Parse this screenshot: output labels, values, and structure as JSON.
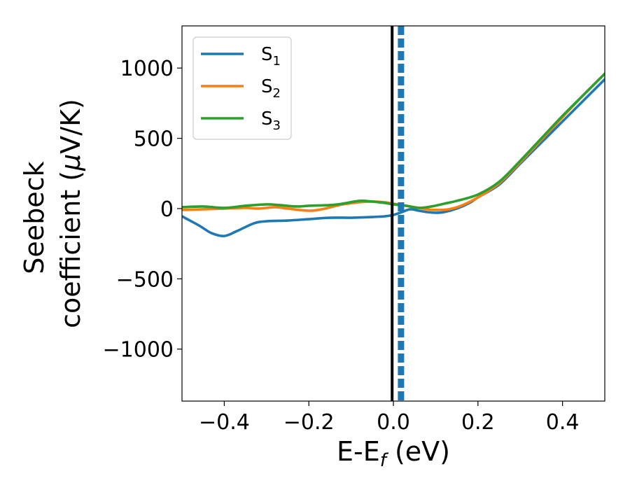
{
  "chart_data": {
    "type": "line",
    "xlabel": {
      "main": "E-E",
      "sub": "f",
      "unit": " (eV)"
    },
    "ylabel": {
      "line1": "Seebeck",
      "line2_prefix": "coefficient  (",
      "mu": "μ",
      "line2_suffix": "V/K)"
    },
    "xlim": [
      -0.5,
      0.5
    ],
    "ylim": [
      -1370,
      1300
    ],
    "xticks": [
      -0.4,
      -0.2,
      0.0,
      0.2,
      0.4
    ],
    "xtick_labels": [
      "−0.4",
      "−0.2",
      "0.0",
      "0.2",
      "0.4"
    ],
    "yticks": [
      -1000,
      -500,
      0,
      500,
      1000
    ],
    "ytick_labels": [
      "−1000",
      "−500",
      "0",
      "500",
      "1000"
    ],
    "grid": false,
    "legend_position": "top-left",
    "vertical_lines": [
      {
        "x": -0.003,
        "color": "#000000",
        "style": "solid"
      },
      {
        "x": 0.018,
        "color": "#1f77b4",
        "style": "dashed"
      }
    ],
    "series": [
      {
        "name": "S",
        "sub": "1",
        "color": "#1f77b4",
        "x": [
          -0.5,
          -0.46,
          -0.43,
          -0.4,
          -0.37,
          -0.33,
          -0.3,
          -0.25,
          -0.2,
          -0.15,
          -0.1,
          -0.05,
          -0.02,
          0.0,
          0.02,
          0.04,
          0.06,
          0.08,
          0.1,
          0.12,
          0.15,
          0.18,
          0.2,
          0.25,
          0.3,
          0.35,
          0.4,
          0.45,
          0.5
        ],
        "y": [
          -55,
          -120,
          -175,
          -195,
          -160,
          -105,
          -90,
          -85,
          -75,
          -65,
          -65,
          -60,
          -55,
          -45,
          -25,
          -5,
          -15,
          -25,
          -30,
          -25,
          0,
          40,
          80,
          170,
          320,
          470,
          620,
          770,
          920
        ]
      },
      {
        "name": "S",
        "sub": "2",
        "color": "#ff7f0e",
        "x": [
          -0.5,
          -0.45,
          -0.4,
          -0.35,
          -0.32,
          -0.28,
          -0.25,
          -0.2,
          -0.17,
          -0.12,
          -0.08,
          -0.05,
          -0.02,
          0.0,
          0.03,
          0.06,
          0.08,
          0.1,
          0.13,
          0.16,
          0.2,
          0.25,
          0.3,
          0.35,
          0.4,
          0.45,
          0.5
        ],
        "y": [
          -10,
          -5,
          0,
          5,
          0,
          10,
          0,
          -15,
          -5,
          30,
          45,
          50,
          45,
          35,
          20,
          5,
          -5,
          -10,
          -5,
          20,
          80,
          180,
          330,
          490,
          650,
          810,
          960
        ]
      },
      {
        "name": "S",
        "sub": "3",
        "color": "#2ca02c",
        "x": [
          -0.5,
          -0.45,
          -0.4,
          -0.35,
          -0.3,
          -0.27,
          -0.23,
          -0.2,
          -0.15,
          -0.12,
          -0.08,
          -0.05,
          -0.02,
          0.0,
          0.03,
          0.06,
          0.09,
          0.12,
          0.15,
          0.2,
          0.25,
          0.3,
          0.35,
          0.4,
          0.45,
          0.5
        ],
        "y": [
          10,
          15,
          5,
          20,
          30,
          25,
          15,
          20,
          25,
          35,
          55,
          50,
          40,
          30,
          20,
          5,
          15,
          35,
          55,
          100,
          190,
          340,
          500,
          660,
          810,
          960
        ]
      }
    ]
  }
}
